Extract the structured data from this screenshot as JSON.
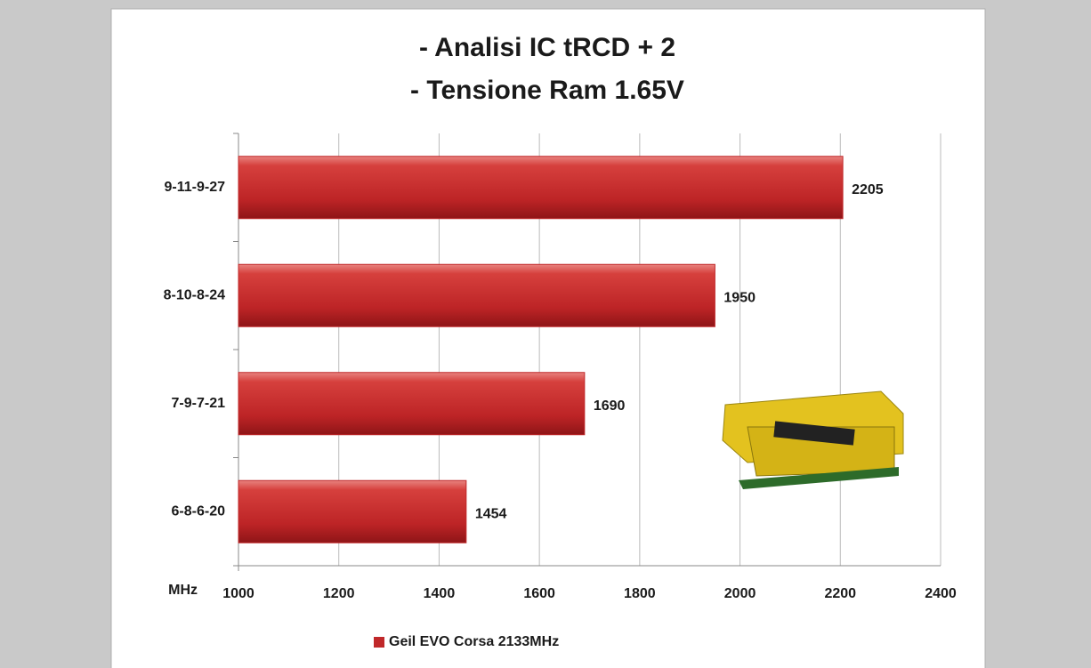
{
  "chart_data": {
    "type": "hbar",
    "title": [
      "- Analisi IC  tRCD + 2",
      "- Tensione Ram 1.65V"
    ],
    "x_label": "MHz",
    "categories": [
      "9-11-9-27",
      "8-10-8-24",
      "7-9-7-21",
      "6-8-6-20"
    ],
    "series": [
      {
        "name": "Geil EVO Corsa 2133MHz",
        "color": "#c0282a",
        "values": [
          2205,
          1950,
          1690,
          1454
        ]
      }
    ],
    "xlim": [
      1000,
      2400
    ],
    "xticks": [
      1000,
      1200,
      1400,
      1600,
      1800,
      2000,
      2200,
      2400
    ],
    "grid": true,
    "legend": "bottom"
  }
}
